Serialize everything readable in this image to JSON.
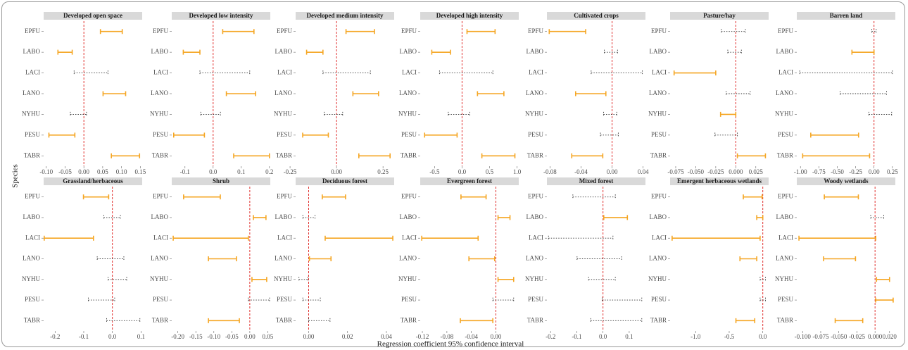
{
  "chart_data": {
    "type": "interval-facet",
    "xlabel": "Regression coefficient 95% confidence interval",
    "ylabel": "Species",
    "categories": [
      "EPFU",
      "LABO",
      "LACI",
      "LANO",
      "NYHU",
      "PESU",
      "TABR"
    ],
    "significant_color": "#f5a623",
    "nonsignificant_color": "#333333",
    "refline": 0,
    "refline_color": "#e0312f",
    "strip_color": "#d9d9d9",
    "panels": [
      {
        "title": "Developed open space",
        "xlim": [
          -0.107,
          0.155
        ],
        "xticks": [
          {
            "value": -0.1,
            "label": "-0.10"
          },
          -0.05,
          {
            "value": 0,
            "label": "0.00"
          },
          0.05,
          {
            "value": 0.1,
            "label": "0.10"
          },
          0.15
        ],
        "low": [
          0.044,
          -0.069,
          -0.026,
          0.051,
          -0.036,
          -0.093,
          0.073
        ],
        "high": [
          0.102,
          -0.031,
          0.064,
          0.111,
          0.007,
          -0.024,
          0.148
        ],
        "significant": [
          true,
          true,
          false,
          true,
          false,
          true,
          true
        ]
      },
      {
        "title": "Developed low intensity",
        "xlim": [
          -0.147,
          0.203
        ],
        "xticks": [
          -0.1,
          {
            "value": 0,
            "label": "0.0"
          },
          0.1,
          0.2
        ],
        "low": [
          0.034,
          -0.106,
          -0.047,
          0.047,
          -0.044,
          -0.14,
          0.073
        ],
        "high": [
          0.145,
          -0.047,
          0.13,
          0.151,
          0.026,
          -0.031,
          0.2
        ],
        "significant": [
          true,
          true,
          false,
          true,
          false,
          true,
          true
        ]
      },
      {
        "title": "Developed medium intensity",
        "xlim": [
          -0.22,
          0.31
        ],
        "xticks": [
          -0.25,
          {
            "value": 0,
            "label": "0.00"
          },
          0.25
        ],
        "low": [
          0.051,
          -0.161,
          -0.073,
          0.088,
          -0.066,
          -0.182,
          0.12
        ],
        "high": [
          0.204,
          -0.073,
          0.182,
          0.226,
          0.033,
          -0.044,
          0.288
        ],
        "significant": [
          true,
          true,
          false,
          true,
          false,
          true,
          true
        ]
      },
      {
        "title": "Developed high intensity",
        "xlim": [
          -0.76,
          1.03
        ],
        "xticks": [
          -0.5,
          {
            "value": 0,
            "label": "0.0"
          },
          0.5,
          {
            "value": 1,
            "label": "1.0"
          }
        ],
        "low": [
          0.09,
          -0.55,
          -0.41,
          0.28,
          -0.25,
          -0.68,
          0.36
        ],
        "high": [
          0.6,
          -0.21,
          0.56,
          0.76,
          0.14,
          -0.09,
          0.96
        ],
        "significant": [
          true,
          true,
          false,
          true,
          false,
          true,
          true
        ]
      },
      {
        "title": "Cultivated crops",
        "xlim": [
          -0.084,
          0.043
        ],
        "xticks": [
          -0.08,
          -0.04,
          {
            "value": 0,
            "label": "0.00"
          },
          0.04
        ],
        "low": [
          -0.081,
          -0.01,
          -0.027,
          -0.047,
          -0.011,
          -0.015,
          -0.052
        ],
        "high": [
          -0.034,
          0.007,
          0.039,
          -0.008,
          0.006,
          0.008,
          -0.012
        ],
        "significant": [
          true,
          false,
          false,
          true,
          false,
          false,
          true
        ]
      },
      {
        "title": "Pasture/hay",
        "xlim": [
          -0.082,
          0.041
        ],
        "xticks": [
          -0.075,
          {
            "value": -0.05,
            "label": "-0.050"
          },
          -0.025,
          {
            "value": 0,
            "label": "0.000"
          },
          0.025
        ],
        "low": [
          -0.018,
          -0.01,
          -0.077,
          -0.012,
          -0.019,
          -0.026,
          0.002
        ],
        "high": [
          0.012,
          0.007,
          -0.025,
          0.018,
          0.0,
          0.002,
          0.037
        ],
        "significant": [
          false,
          false,
          true,
          false,
          true,
          false,
          true
        ]
      },
      {
        "title": "Barren land",
        "xlim": [
          -1.05,
          0.29
        ],
        "xticks": [
          {
            "value": -1,
            "label": "-1.00"
          },
          -0.75,
          {
            "value": -0.5,
            "label": "-0.50"
          },
          -0.25,
          {
            "value": 0,
            "label": "0.00"
          },
          0.25
        ],
        "low": [
          -0.03,
          -0.3,
          -1.01,
          -0.46,
          -0.07,
          -0.86,
          -0.97
        ],
        "high": [
          0.03,
          0.0,
          0.25,
          0.17,
          0.24,
          -0.21,
          -0.06
        ],
        "significant": [
          false,
          true,
          false,
          false,
          false,
          true,
          true
        ]
      },
      {
        "title": "Grassland/herbaceous",
        "xlim": [
          -0.24,
          0.104
        ],
        "xticks": [
          -0.2,
          -0.1,
          {
            "value": 0,
            "label": "0.0"
          },
          0.1
        ],
        "low": [
          -0.101,
          -0.03,
          -0.238,
          -0.053,
          -0.015,
          -0.084,
          -0.02
        ],
        "high": [
          -0.013,
          0.028,
          -0.066,
          0.04,
          0.05,
          0.008,
          0.096
        ],
        "significant": [
          true,
          false,
          true,
          false,
          false,
          false,
          false
        ]
      },
      {
        "title": "Shrub",
        "xlim": [
          -0.217,
          0.057
        ],
        "xticks": [
          {
            "value": -0.2,
            "label": "-0.20"
          },
          -0.15,
          {
            "value": -0.1,
            "label": "-0.10"
          },
          -0.05,
          {
            "value": 0,
            "label": "0.00"
          },
          0.05
        ],
        "low": [
          -0.184,
          0.01,
          -0.213,
          -0.115,
          0.006,
          -0.004,
          -0.115
        ],
        "high": [
          -0.082,
          0.045,
          -0.004,
          -0.037,
          0.047,
          0.055,
          -0.029
        ],
        "significant": [
          true,
          true,
          true,
          true,
          true,
          false,
          true
        ]
      },
      {
        "title": "Deciduous forest",
        "xlim": [
          -0.0067,
          0.044
        ],
        "xticks": [
          {
            "value": 0,
            "label": "0.00"
          },
          0.02,
          0.04
        ],
        "low": [
          0.007,
          -0.003,
          0.0085,
          0.0004,
          -0.005,
          -0.003,
          0.0
        ],
        "high": [
          0.019,
          0.0033,
          0.0433,
          0.0115,
          -0.0004,
          0.006,
          0.011
        ],
        "significant": [
          true,
          false,
          true,
          true,
          false,
          false,
          false
        ]
      },
      {
        "title": "Evergreen forest",
        "xlim": [
          -0.1235,
          0.0373
        ],
        "xticks": [
          -0.12,
          -0.08,
          -0.04,
          {
            "value": 0,
            "label": "0.00"
          }
        ],
        "low": [
          -0.057,
          0.0035,
          -0.121,
          -0.044,
          0.0035,
          -0.005,
          -0.058
        ],
        "high": [
          -0.016,
          0.023,
          -0.029,
          -0.002,
          0.029,
          0.029,
          -0.005
        ],
        "significant": [
          true,
          true,
          true,
          true,
          true,
          false,
          true
        ]
      },
      {
        "title": "Mixed forest",
        "xlim": [
          -0.214,
          0.162
        ],
        "xticks": [
          -0.2,
          -0.1,
          {
            "value": 0,
            "label": "0.0"
          },
          0.1
        ],
        "low": [
          -0.115,
          0.003,
          -0.208,
          -0.099,
          -0.055,
          -0.003,
          -0.047
        ],
        "high": [
          0.047,
          0.093,
          0.038,
          0.071,
          0.047,
          0.148,
          0.148
        ],
        "significant": [
          false,
          true,
          false,
          false,
          false,
          false,
          false
        ]
      },
      {
        "title": "Emergent herbaceous wetlands",
        "xlim": [
          -1.38,
          0.087
        ],
        "xticks": [
          {
            "value": -1,
            "label": "-1.0"
          },
          -0.5,
          {
            "value": 0,
            "label": "0.0"
          }
        ],
        "low": [
          -0.29,
          -0.09,
          -1.35,
          -0.34,
          -0.04,
          -0.04,
          -0.4
        ],
        "high": [
          -0.01,
          0.0,
          -0.04,
          -0.09,
          0.04,
          0.04,
          -0.12
        ],
        "significant": [
          true,
          true,
          true,
          true,
          false,
          false,
          true
        ]
      },
      {
        "title": "Woody wetlands",
        "xlim": [
          -0.108,
          0.028
        ],
        "xticks": [
          {
            "value": -0.1,
            "label": "-0.100"
          },
          -0.075,
          {
            "value": -0.05,
            "label": "-0.050"
          },
          -0.025,
          {
            "value": 0,
            "label": "0.000"
          },
          {
            "value": 0.02,
            "label": "0.020"
          }
        ],
        "low": [
          -0.07,
          -0.006,
          -0.105,
          -0.071,
          0.002,
          0.001,
          -0.055
        ],
        "high": [
          -0.023,
          0.012,
          0.001,
          -0.027,
          0.02,
          0.025,
          -0.017
        ],
        "significant": [
          true,
          false,
          true,
          true,
          true,
          true,
          true
        ]
      }
    ]
  }
}
